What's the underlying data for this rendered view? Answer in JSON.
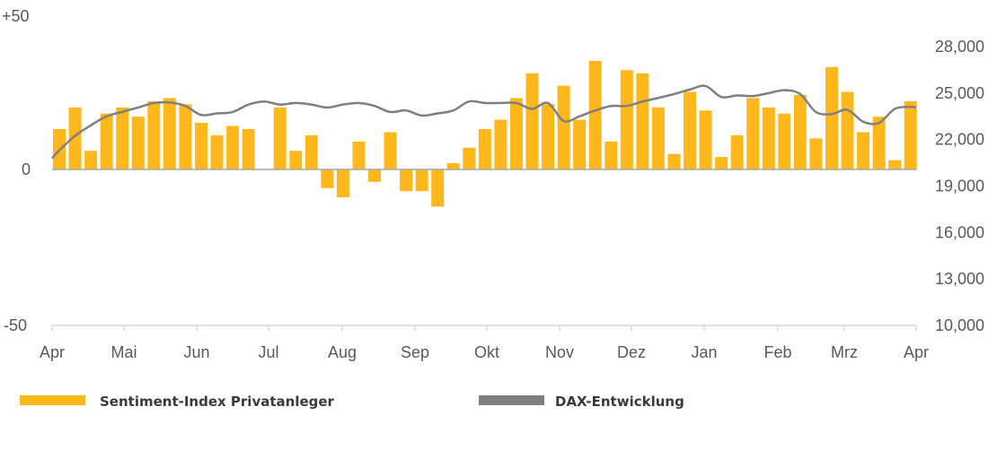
{
  "chart_data": {
    "type": "bar+line",
    "title": "",
    "categories_months": [
      "Apr",
      "Mai",
      "Jun",
      "Jul",
      "Aug",
      "Sep",
      "Okt",
      "Nov",
      "Dez",
      "Jan",
      "Feb",
      "Mrz",
      "Apr"
    ],
    "left_axis": {
      "ticks": [
        "+50",
        "0",
        "-50"
      ],
      "range": [
        -50,
        50
      ]
    },
    "right_axis": {
      "ticks": [
        "28,000",
        "25,000",
        "22,000",
        "19,000",
        "16,000",
        "13,000",
        "10,000"
      ],
      "range": [
        10000,
        28000
      ]
    },
    "colors": {
      "bar": "#FFB81C",
      "line": "#7F7F7F"
    },
    "series": [
      {
        "name": "Sentiment-Index Privatanleger",
        "type": "bar",
        "axis": "left",
        "values": [
          13,
          20,
          6,
          18,
          20,
          17,
          22,
          23,
          21,
          15,
          11,
          14,
          13,
          null,
          20,
          6,
          11,
          -6,
          -9,
          9,
          -4,
          12,
          -7,
          -7,
          -12,
          2,
          7,
          13,
          16,
          23,
          31,
          21,
          27,
          16,
          35,
          9,
          32,
          31,
          20,
          5,
          25,
          19,
          4,
          11,
          23,
          20,
          18,
          24,
          10,
          33,
          25,
          12,
          17,
          3,
          22
        ]
      },
      {
        "name": "DAX-Entwicklung",
        "type": "line",
        "axis": "right",
        "x": [
          -0.46,
          0,
          1,
          2,
          3,
          4,
          5,
          6,
          7,
          8,
          9,
          10,
          11,
          12,
          13,
          14,
          15,
          16,
          17,
          18,
          19,
          20,
          21,
          22,
          23,
          24,
          25,
          26,
          27,
          28,
          29,
          30,
          31,
          32,
          33,
          34,
          35,
          36,
          37,
          38,
          39,
          40,
          41,
          42,
          43,
          44,
          45,
          46,
          47,
          48,
          49,
          50,
          51,
          52,
          53,
          54,
          54.36
        ],
        "values": [
          20730,
          21240,
          22180,
          22860,
          23440,
          23730,
          24010,
          24300,
          24340,
          24110,
          23530,
          23630,
          23720,
          24200,
          24400,
          24200,
          24300,
          24200,
          24010,
          24200,
          24300,
          24110,
          23720,
          23820,
          23490,
          23630,
          23820,
          24400,
          24300,
          24300,
          24300,
          23920,
          24300,
          23140,
          23440,
          23820,
          24110,
          24110,
          24400,
          24630,
          24880,
          25170,
          25400,
          24690,
          24790,
          24750,
          24940,
          25130,
          24880,
          23720,
          23590,
          23860,
          23090,
          23010,
          23920,
          24050,
          24010
        ]
      }
    ],
    "legend": [
      "Sentiment-Index Privatanleger",
      "DAX-Entwicklung"
    ],
    "legend_position": "bottom",
    "grid": false
  }
}
